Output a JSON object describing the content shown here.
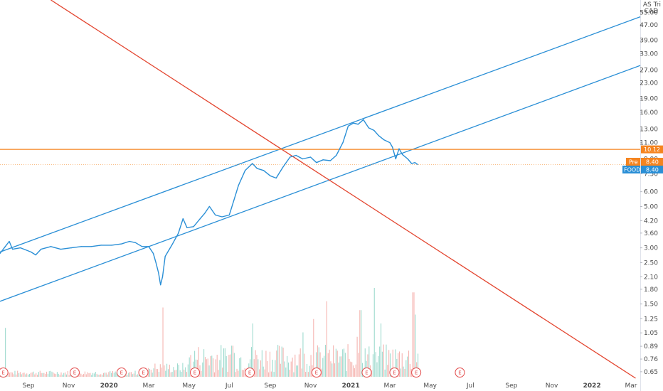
{
  "chart_data": {
    "type": "line",
    "symbol": "FOOD",
    "scale": "log",
    "currency_label": [
      "AS Tri",
      "CAD"
    ],
    "x_ticks": [
      "Sep",
      "Nov",
      "2020",
      "Mar",
      "May",
      "Jul",
      "Sep",
      "Nov",
      "2021",
      "Mar",
      "May",
      "Jul",
      "Sep",
      "Nov",
      "2022",
      "Mar"
    ],
    "y_ticks": [
      "55.00",
      "47.00",
      "39.00",
      "33.00",
      "27.00",
      "23.00",
      "19.00",
      "16.00",
      "13.00",
      "11.00",
      "9.00",
      "7.50",
      "6.00",
      "5.00",
      "4.20",
      "3.60",
      "3.00",
      "2.50",
      "2.10",
      "1.80",
      "1.50",
      "1.25",
      "1.05",
      "0.89",
      "0.76",
      "0.65"
    ],
    "ylim": [
      0.6,
      64
    ],
    "x_range": [
      "2019-07-20",
      "2022-03-15"
    ],
    "series": [
      {
        "color": "#2a8fd6",
        "points": [
          [
            "2019-07-20",
            2.8
          ],
          [
            "2019-07-28",
            3.05
          ],
          [
            "2019-08-03",
            3.25
          ],
          [
            "2019-08-08",
            2.95
          ],
          [
            "2019-08-20",
            3.0
          ],
          [
            "2019-09-05",
            2.85
          ],
          [
            "2019-09-12",
            2.75
          ],
          [
            "2019-09-20",
            2.95
          ],
          [
            "2019-10-05",
            3.05
          ],
          [
            "2019-10-20",
            2.95
          ],
          [
            "2019-11-05",
            3.0
          ],
          [
            "2019-11-20",
            3.05
          ],
          [
            "2019-12-05",
            3.05
          ],
          [
            "2019-12-20",
            3.1
          ],
          [
            "2020-01-05",
            3.1
          ],
          [
            "2020-01-20",
            3.15
          ],
          [
            "2020-02-01",
            3.25
          ],
          [
            "2020-02-10",
            3.2
          ],
          [
            "2020-02-20",
            3.05
          ],
          [
            "2020-03-01",
            3.05
          ],
          [
            "2020-03-08",
            2.8
          ],
          [
            "2020-03-12",
            2.5
          ],
          [
            "2020-03-16",
            2.2
          ],
          [
            "2020-03-19",
            1.9
          ],
          [
            "2020-03-22",
            2.1
          ],
          [
            "2020-03-26",
            2.7
          ],
          [
            "2020-04-05",
            3.1
          ],
          [
            "2020-04-15",
            3.6
          ],
          [
            "2020-04-22",
            4.3
          ],
          [
            "2020-04-28",
            3.85
          ],
          [
            "2020-05-08",
            3.9
          ],
          [
            "2020-05-18",
            4.3
          ],
          [
            "2020-05-25",
            4.6
          ],
          [
            "2020-06-01",
            5.0
          ],
          [
            "2020-06-10",
            4.5
          ],
          [
            "2020-06-20",
            4.4
          ],
          [
            "2020-07-01",
            4.5
          ],
          [
            "2020-07-08",
            5.4
          ],
          [
            "2020-07-15",
            6.5
          ],
          [
            "2020-07-25",
            7.8
          ],
          [
            "2020-08-05",
            8.5
          ],
          [
            "2020-08-12",
            8.0
          ],
          [
            "2020-08-22",
            7.8
          ],
          [
            "2020-09-01",
            7.3
          ],
          [
            "2020-09-10",
            7.1
          ],
          [
            "2020-09-20",
            8.1
          ],
          [
            "2020-10-01",
            9.2
          ],
          [
            "2020-10-10",
            9.4
          ],
          [
            "2020-10-20",
            9.0
          ],
          [
            "2020-11-01",
            9.2
          ],
          [
            "2020-11-10",
            8.6
          ],
          [
            "2020-11-20",
            8.9
          ],
          [
            "2020-12-01",
            8.8
          ],
          [
            "2020-12-10",
            9.4
          ],
          [
            "2020-12-20",
            11.0
          ],
          [
            "2020-12-28",
            13.5
          ],
          [
            "2021-01-05",
            14.0
          ],
          [
            "2021-01-12",
            13.8
          ],
          [
            "2021-01-20",
            14.6
          ],
          [
            "2021-01-28",
            13.2
          ],
          [
            "2021-02-05",
            12.8
          ],
          [
            "2021-02-12",
            12.0
          ],
          [
            "2021-02-20",
            11.4
          ],
          [
            "2021-03-01",
            11.0
          ],
          [
            "2021-03-05",
            10.4
          ],
          [
            "2021-03-10",
            9.0
          ],
          [
            "2021-03-15",
            10.2
          ],
          [
            "2021-03-20",
            9.5
          ],
          [
            "2021-03-28",
            9.0
          ],
          [
            "2021-04-03",
            8.5
          ],
          [
            "2021-04-08",
            8.6
          ],
          [
            "2021-04-12",
            8.4
          ]
        ]
      }
    ],
    "channel_lines": [
      {
        "name": "upper-channel",
        "color": "#2a8fd6",
        "from": [
          "2019-07-20",
          2.85
        ],
        "to": [
          "2022-03-15",
          52.0
        ]
      },
      {
        "name": "lower-channel",
        "color": "#2a8fd6",
        "from": [
          "2019-07-20",
          1.55
        ],
        "to": [
          "2022-03-15",
          28.5
        ]
      },
      {
        "name": "down-trendline",
        "color": "#e3452f",
        "from": [
          "2019-10-05",
          64.0
        ],
        "to": [
          "2022-03-08",
          0.6
        ]
      }
    ],
    "horizontal_line": {
      "color": "#f5841f",
      "value": 10.12,
      "label": "10.12"
    },
    "price_tags": [
      {
        "name": "pre-tag",
        "prefix": "Pre",
        "value": "8.40",
        "color": "#f5841f"
      },
      {
        "name": "last-price-tag",
        "prefix": "FOOD",
        "value": "8.40",
        "color": "#2a8fd6"
      }
    ],
    "earnings_marker": "E",
    "earnings_dates": [
      "2019-07-25",
      "2019-11-10",
      "2020-01-20",
      "2020-02-22",
      "2020-05-10",
      "2020-08-01",
      "2020-11-10",
      "2021-01-25",
      "2021-03-08",
      "2021-04-10",
      "2021-06-15"
    ],
    "volume": {
      "start": "2019-07-20",
      "end": "2021-04-12",
      "spikes": [
        [
          "2020-03-22",
          0.78
        ],
        [
          "2020-07-05",
          0.35
        ],
        [
          "2020-08-05",
          0.6
        ],
        [
          "2020-10-20",
          0.5
        ],
        [
          "2020-11-05",
          0.65
        ],
        [
          "2020-11-25",
          0.85
        ],
        [
          "2021-01-10",
          0.45
        ],
        [
          "2021-01-15",
          0.75
        ],
        [
          "2021-02-05",
          1.0
        ],
        [
          "2021-02-15",
          0.6
        ],
        [
          "2021-04-05",
          0.95
        ],
        [
          "2021-04-08",
          0.7
        ]
      ]
    }
  }
}
